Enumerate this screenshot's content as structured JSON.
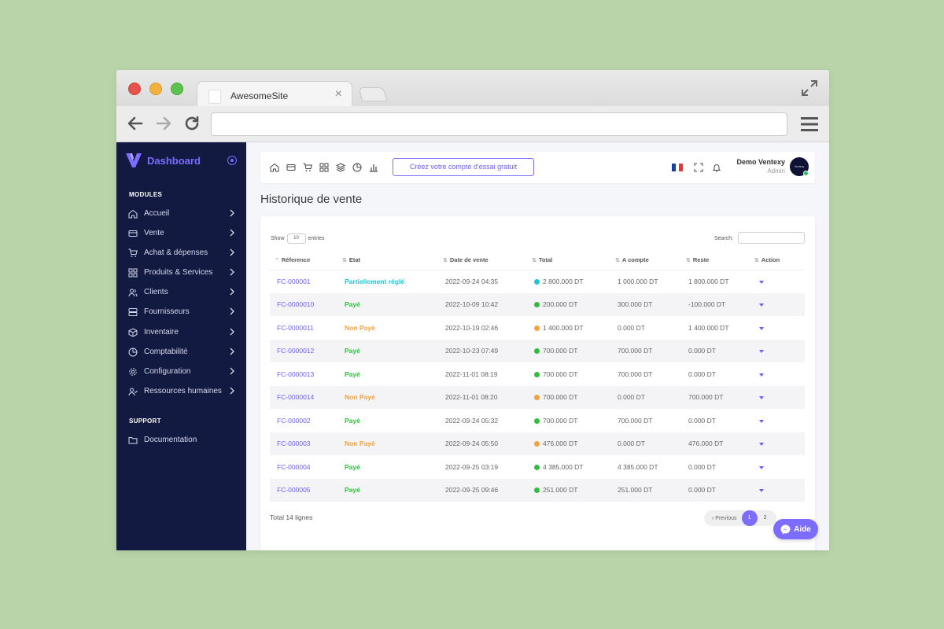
{
  "browser": {
    "tab_title": "AwesomeSite",
    "url": ""
  },
  "sidebar": {
    "brand": "Dashboard",
    "modules_label": "MODULES",
    "support_label": "SUPPORT",
    "items": [
      {
        "label": "Accueil",
        "icon": "home-icon"
      },
      {
        "label": "Vente",
        "icon": "credit-card-icon"
      },
      {
        "label": "Achat & dépenses",
        "icon": "cart-icon"
      },
      {
        "label": "Produits & Services",
        "icon": "grid-icon"
      },
      {
        "label": "Clients",
        "icon": "users-icon"
      },
      {
        "label": "Fournisseurs",
        "icon": "server-icon"
      },
      {
        "label": "Inventaire",
        "icon": "box-icon"
      },
      {
        "label": "Comptabilité",
        "icon": "pie-chart-icon"
      },
      {
        "label": "Configuration",
        "icon": "gear-icon"
      },
      {
        "label": "Ressources humaines",
        "icon": "user-check-icon"
      }
    ],
    "support_items": [
      {
        "label": "Documentation",
        "icon": "folder-icon"
      }
    ]
  },
  "topbar": {
    "trial_button": "Créez votre compte d'essai gratuit",
    "user_name": "Demo Ventexy",
    "user_role": "Admin",
    "avatar_text": "Ventexy"
  },
  "page": {
    "title": "Historique de vente"
  },
  "table": {
    "show_label": "Show",
    "entries_value": "10",
    "entries_label": "entries",
    "search_label": "Search:",
    "columns": [
      "Réference",
      "Etat",
      "Date de vente",
      "Total",
      "A compte",
      "Reste",
      "Action"
    ],
    "rows": [
      {
        "ref": "FC-000001",
        "etat": "Partiellement réglé",
        "status": "partial",
        "date": "2022-09-24 04:35",
        "total": "2 800.000 DT",
        "acompte": "1 000.000 DT",
        "reste": "1 800.000 DT"
      },
      {
        "ref": "FC-0000010",
        "etat": "Payé",
        "status": "paid",
        "date": "2022-10-09 10:42",
        "total": "200.000 DT",
        "acompte": "300.000 DT",
        "reste": "-100.000 DT"
      },
      {
        "ref": "FC-0000011",
        "etat": "Non Payé",
        "status": "unpaid",
        "date": "2022-10-19 02:46",
        "total": "1 400.000 DT",
        "acompte": "0.000 DT",
        "reste": "1 400.000 DT"
      },
      {
        "ref": "FC-0000012",
        "etat": "Payé",
        "status": "paid",
        "date": "2022-10-23 07:49",
        "total": "700.000 DT",
        "acompte": "700.000 DT",
        "reste": "0.000 DT"
      },
      {
        "ref": "FC-0000013",
        "etat": "Payé",
        "status": "paid",
        "date": "2022-11-01 08:19",
        "total": "700.000 DT",
        "acompte": "700.000 DT",
        "reste": "0.000 DT"
      },
      {
        "ref": "FC-0000014",
        "etat": "Non Payé",
        "status": "unpaid",
        "date": "2022-11-01 08:20",
        "total": "700.000 DT",
        "acompte": "0.000 DT",
        "reste": "700.000 DT"
      },
      {
        "ref": "FC-000002",
        "etat": "Payé",
        "status": "paid",
        "date": "2022-09-24 05:32",
        "total": "700.000 DT",
        "acompte": "700.000 DT",
        "reste": "0.000 DT"
      },
      {
        "ref": "FC-000003",
        "etat": "Non Payé",
        "status": "unpaid",
        "date": "2022-09-24 05:50",
        "total": "476.000 DT",
        "acompte": "0.000 DT",
        "reste": "476.000 DT"
      },
      {
        "ref": "FC-000004",
        "etat": "Payé",
        "status": "paid",
        "date": "2022-09-25 03:19",
        "total": "4 385.000 DT",
        "acompte": "4 385.000 DT",
        "reste": "0.000 DT"
      },
      {
        "ref": "FC-000005",
        "etat": "Payé",
        "status": "paid",
        "date": "2022-09-25 09:46",
        "total": "251.000 DT",
        "acompte": "251.000 DT",
        "reste": "0.000 DT"
      }
    ],
    "total_lines": "Total 14 lignes"
  },
  "pagination": {
    "previous": "‹ Previous",
    "pages": [
      "1",
      "2"
    ],
    "active": "1"
  },
  "help_button": "Aide",
  "colors": {
    "accent": "#7c6cff",
    "sidebar_bg": "#121a42",
    "paid": "#2dbf3c",
    "unpaid": "#f5a23a",
    "partial": "#1cc8d8"
  }
}
